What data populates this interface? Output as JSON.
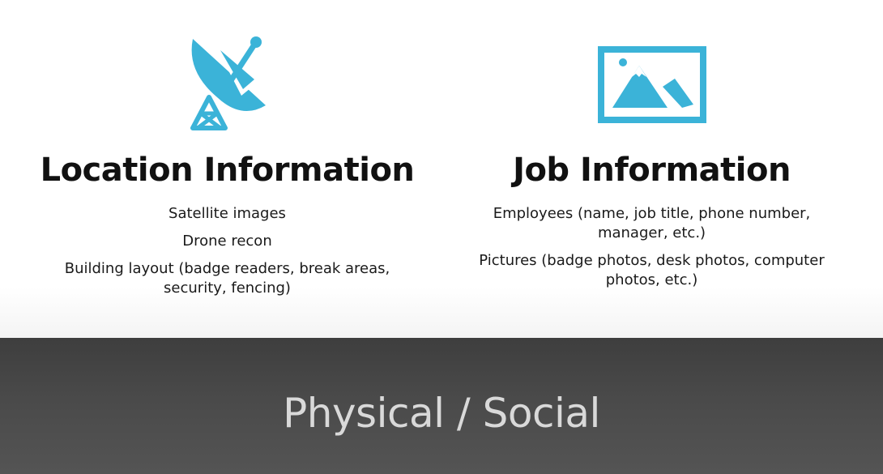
{
  "accent_color": "#3bb3d8",
  "left": {
    "icon": "satellite-dish-icon",
    "heading": "Location Information",
    "items": [
      "Satellite images",
      "Drone recon",
      "Building layout (badge readers, break areas, security, fencing)"
    ]
  },
  "right": {
    "icon": "picture-icon",
    "heading": "Job Information",
    "items": [
      "Employees (name, job title, phone number, manager, etc.)",
      "Pictures (badge photos, desk photos, computer photos, etc.)"
    ]
  },
  "banner": {
    "title": "Physical / Social"
  }
}
